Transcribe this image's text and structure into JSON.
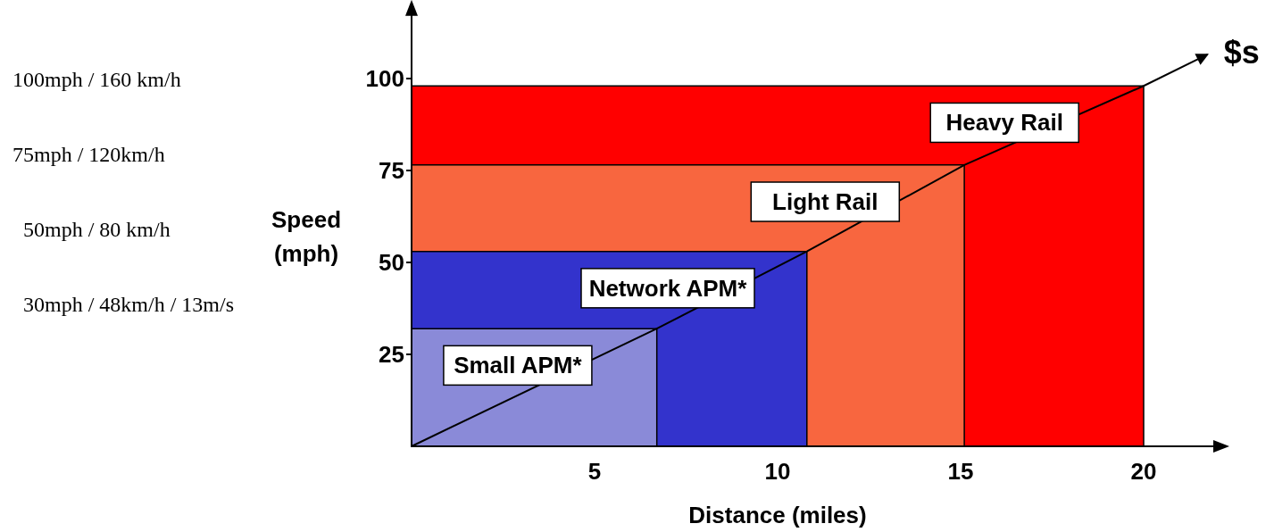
{
  "chart_data": {
    "type": "area",
    "xlabel": "Distance (miles)",
    "ylabel": "Speed (mph)",
    "xlim": [
      0,
      22
    ],
    "ylim": [
      0,
      118
    ],
    "xticks": [
      5,
      10,
      15,
      20
    ],
    "yticks": [
      25,
      50,
      75,
      100
    ],
    "grid": false,
    "series": [
      {
        "name": "Heavy Rail",
        "color": "#ff0000",
        "x": [
          0,
          20
        ],
        "values": [
          98,
          98
        ]
      },
      {
        "name": "Light Rail",
        "color": "#f8663f",
        "x": [
          0,
          15.1
        ],
        "values": [
          76.5,
          76.5
        ]
      },
      {
        "name": "Network APM*",
        "color": "#3333cc",
        "x": [
          0,
          10.8
        ],
        "values": [
          53,
          53
        ]
      },
      {
        "name": "Small APM*",
        "color": "#8a8ad8",
        "x": [
          0,
          6.7
        ],
        "values": [
          32,
          32
        ]
      }
    ],
    "annotations": [
      "100mph / 160 km/h",
      "75mph / 120km/h",
      "50mph / 80 km/h",
      "30mph / 48km/h / 13m/s",
      "$s"
    ]
  }
}
